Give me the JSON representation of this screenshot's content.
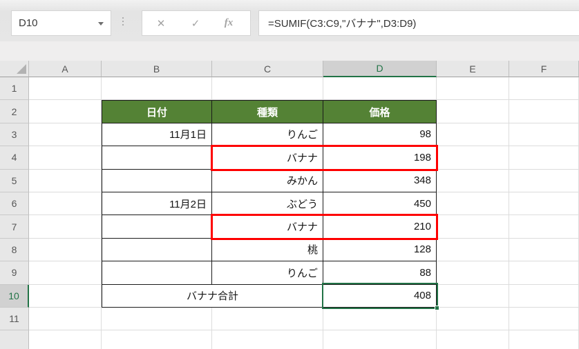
{
  "formula_bar": {
    "name_box_value": "D10",
    "formula": "=SUMIF(C3:C9,\"バナナ\",D3:D9)",
    "cancel_glyph": "✕",
    "enter_glyph": "✓",
    "fx_label": "fx"
  },
  "colors": {
    "table_header_green": "#548235",
    "selection_green": "#217346",
    "highlight_red": "#fe0000",
    "header_gray": "#e7e7e7",
    "selected_header_gray": "#d1d1d1"
  },
  "sheet": {
    "column_headers": [
      "A",
      "B",
      "C",
      "D",
      "E",
      "F"
    ],
    "row_headers": [
      "1",
      "2",
      "3",
      "4",
      "5",
      "6",
      "7",
      "8",
      "9",
      "10",
      "11"
    ],
    "selected_cell": "D10",
    "selected_column": "D",
    "selected_row": "10",
    "table": {
      "headers": {
        "date": "日付",
        "type": "種類",
        "price": "価格"
      },
      "rows": [
        {
          "date": "11月1日",
          "type": "りんご",
          "price": "98"
        },
        {
          "date": "",
          "type": "バナナ",
          "price": "198"
        },
        {
          "date": "",
          "type": "みかん",
          "price": "348"
        },
        {
          "date": "11月2日",
          "type": "ぶどう",
          "price": "450"
        },
        {
          "date": "",
          "type": "バナナ",
          "price": "210"
        },
        {
          "date": "",
          "type": "桃",
          "price": "128"
        },
        {
          "date": "",
          "type": "りんご",
          "price": "88"
        }
      ],
      "total_label": "バナナ合計",
      "total_value": "408"
    }
  }
}
